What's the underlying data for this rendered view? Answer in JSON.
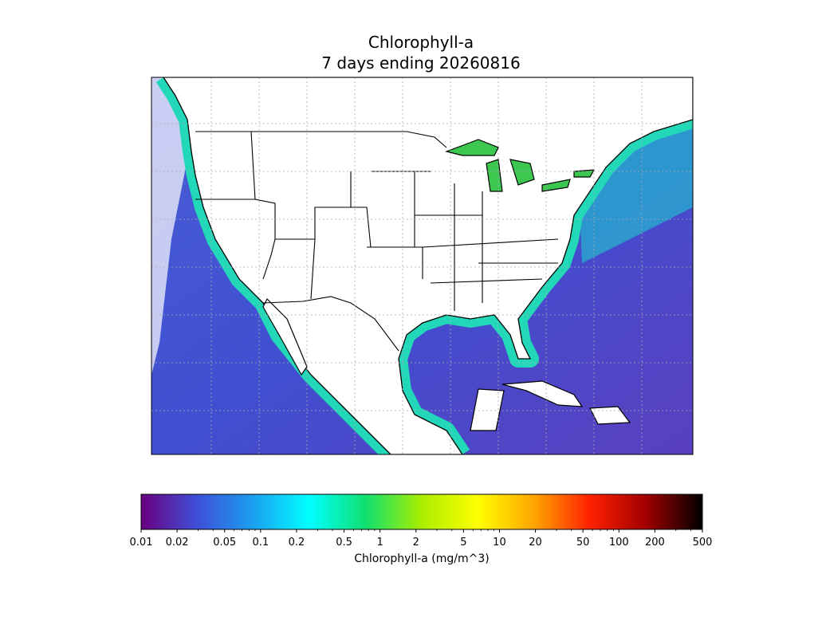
{
  "title": "Chlorophyll-a",
  "subtitle": "7 days ending 20260816",
  "colorbar": {
    "label": "Chlorophyll-a (mg/m^3)",
    "scale": "log",
    "range": [
      0.01,
      500
    ],
    "ticks": [
      0.01,
      0.02,
      0.05,
      0.1,
      0.2,
      0.5,
      1,
      2,
      5,
      10,
      20,
      50,
      100,
      200,
      500
    ],
    "minor_ticks": [
      0.03,
      0.04,
      0.06,
      0.07,
      0.08,
      0.09,
      0.3,
      0.4,
      0.6,
      0.7,
      0.8,
      0.9,
      3,
      4,
      6,
      7,
      8,
      9,
      30,
      40,
      60,
      70,
      80,
      90,
      300,
      400
    ],
    "colors": [
      "#6a007f",
      "#3f4fd8",
      "#1aa0f0",
      "#00ffff",
      "#10e070",
      "#aaee00",
      "#ffff00",
      "#ffa500",
      "#ff2000",
      "#a00000",
      "#000000"
    ]
  }
}
